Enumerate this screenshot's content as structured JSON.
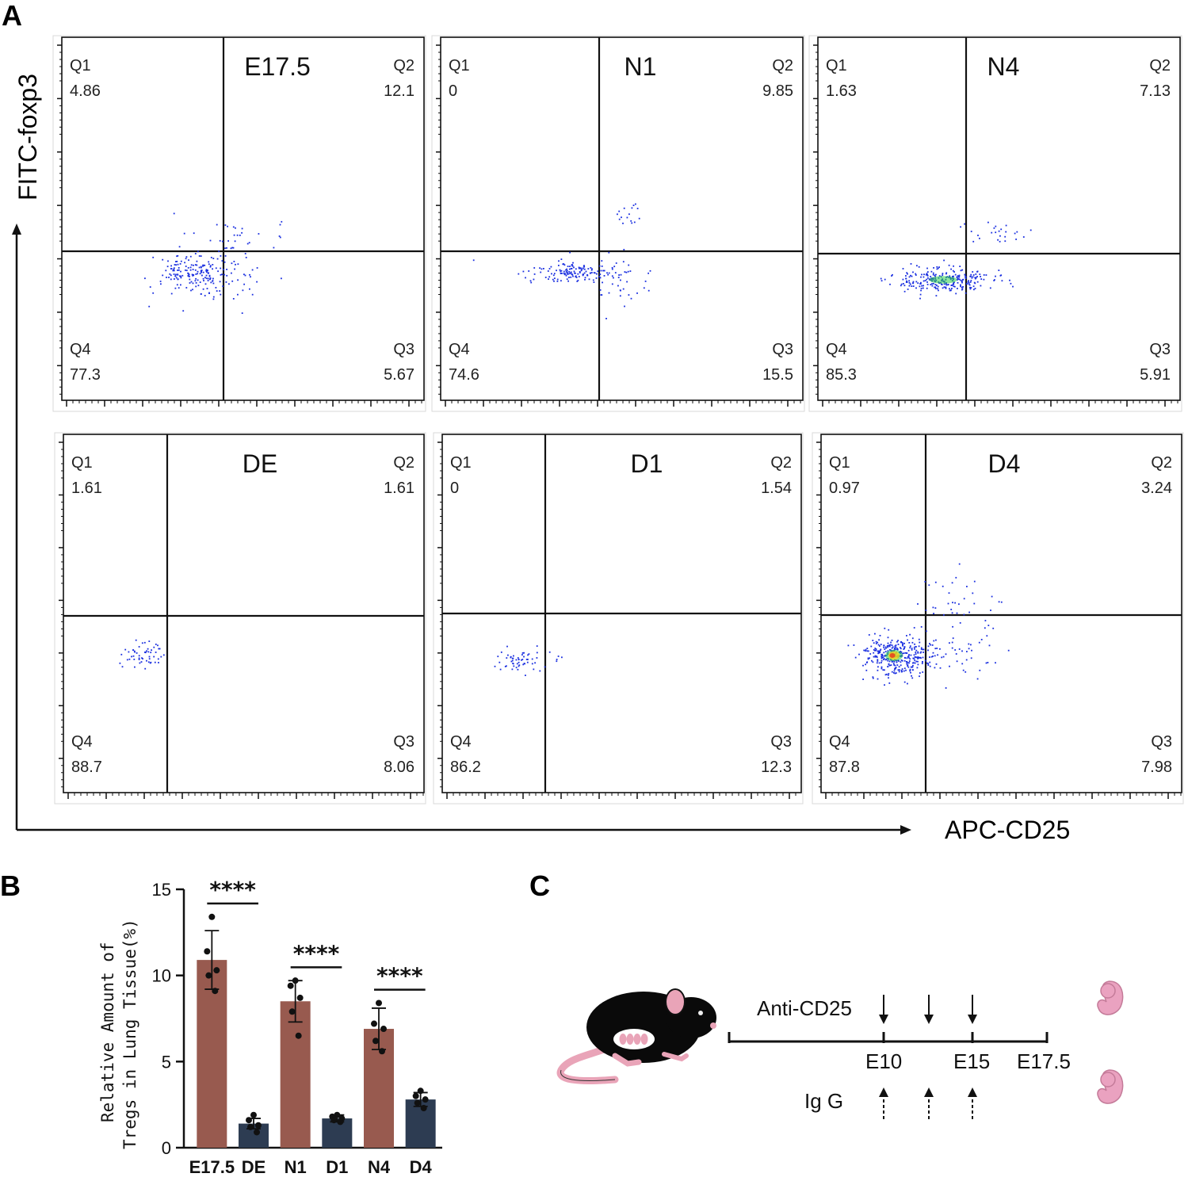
{
  "panel_labels": {
    "a": "A",
    "b": "B",
    "c": "C"
  },
  "flow": {
    "y_axis_label": "FITC-foxp3",
    "x_axis_label": "APC-CD25",
    "quadrant_names": [
      "Q1",
      "Q2",
      "Q3",
      "Q4"
    ],
    "colors": {
      "event": "#1a2fe0",
      "dense": "#2fd24a",
      "hot": "#f5d61a",
      "peak": "#e83a1c"
    }
  },
  "chart_data": [
    {
      "type": "scatter",
      "title": "E17.5",
      "quadrants": {
        "Q1": "4.86",
        "Q2": "12.1",
        "Q3": "5.67",
        "Q4": "77.3"
      }
    },
    {
      "type": "scatter",
      "title": "N1",
      "quadrants": {
        "Q1": "0",
        "Q2": "9.85",
        "Q3": "15.5",
        "Q4": "74.6"
      }
    },
    {
      "type": "scatter",
      "title": "N4",
      "quadrants": {
        "Q1": "1.63",
        "Q2": "7.13",
        "Q3": "5.91",
        "Q4": "85.3"
      }
    },
    {
      "type": "scatter",
      "title": "DE",
      "quadrants": {
        "Q1": "1.61",
        "Q2": "1.61",
        "Q3": "8.06",
        "Q4": "88.7"
      }
    },
    {
      "type": "scatter",
      "title": "D1",
      "quadrants": {
        "Q1": "0",
        "Q2": "1.54",
        "Q3": "12.3",
        "Q4": "86.2"
      }
    },
    {
      "type": "scatter",
      "title": "D4",
      "quadrants": {
        "Q1": "0.97",
        "Q2": "3.24",
        "Q3": "7.98",
        "Q4": "87.8"
      }
    },
    {
      "type": "bar",
      "categories": [
        "E17.5",
        "DE",
        "N1",
        "D1",
        "N4",
        "D4"
      ],
      "values": [
        10.9,
        1.4,
        8.5,
        1.7,
        6.9,
        2.8
      ],
      "errors": [
        1.7,
        0.3,
        1.2,
        0.2,
        1.2,
        0.4
      ],
      "points": [
        [
          13.4,
          11.4,
          10.3,
          10.0,
          9.1
        ],
        [
          1.9,
          1.6,
          1.3,
          1.2,
          0.9
        ],
        [
          9.7,
          9.4,
          8.7,
          7.9,
          6.5
        ],
        [
          1.9,
          1.8,
          1.7,
          1.6,
          1.5
        ],
        [
          8.4,
          7.2,
          6.9,
          6.2,
          5.6
        ],
        [
          3.3,
          3.0,
          2.8,
          2.6,
          2.3
        ]
      ],
      "bar_colors": [
        "#985a4f",
        "#2d3c52",
        "#985a4f",
        "#2d3c52",
        "#985a4f",
        "#2d3c52"
      ],
      "ylabel_line1": "Relative Amount of",
      "ylabel_line2": "Tregs in Lung Tissue(%)",
      "xlabel": "",
      "ylim": [
        0,
        15
      ],
      "yticks": [
        0,
        5,
        10,
        15
      ],
      "significance": [
        {
          "groups": [
            "E17.5",
            "DE"
          ],
          "label": "****"
        },
        {
          "groups": [
            "N1",
            "D1"
          ],
          "label": "****"
        },
        {
          "groups": [
            "N4",
            "D4"
          ],
          "label": "****"
        }
      ]
    }
  ],
  "schematic": {
    "treatment_label": "Anti-CD25",
    "control_label": "Ig G",
    "timepoints": [
      "E10",
      "E15",
      "E17.5"
    ]
  }
}
